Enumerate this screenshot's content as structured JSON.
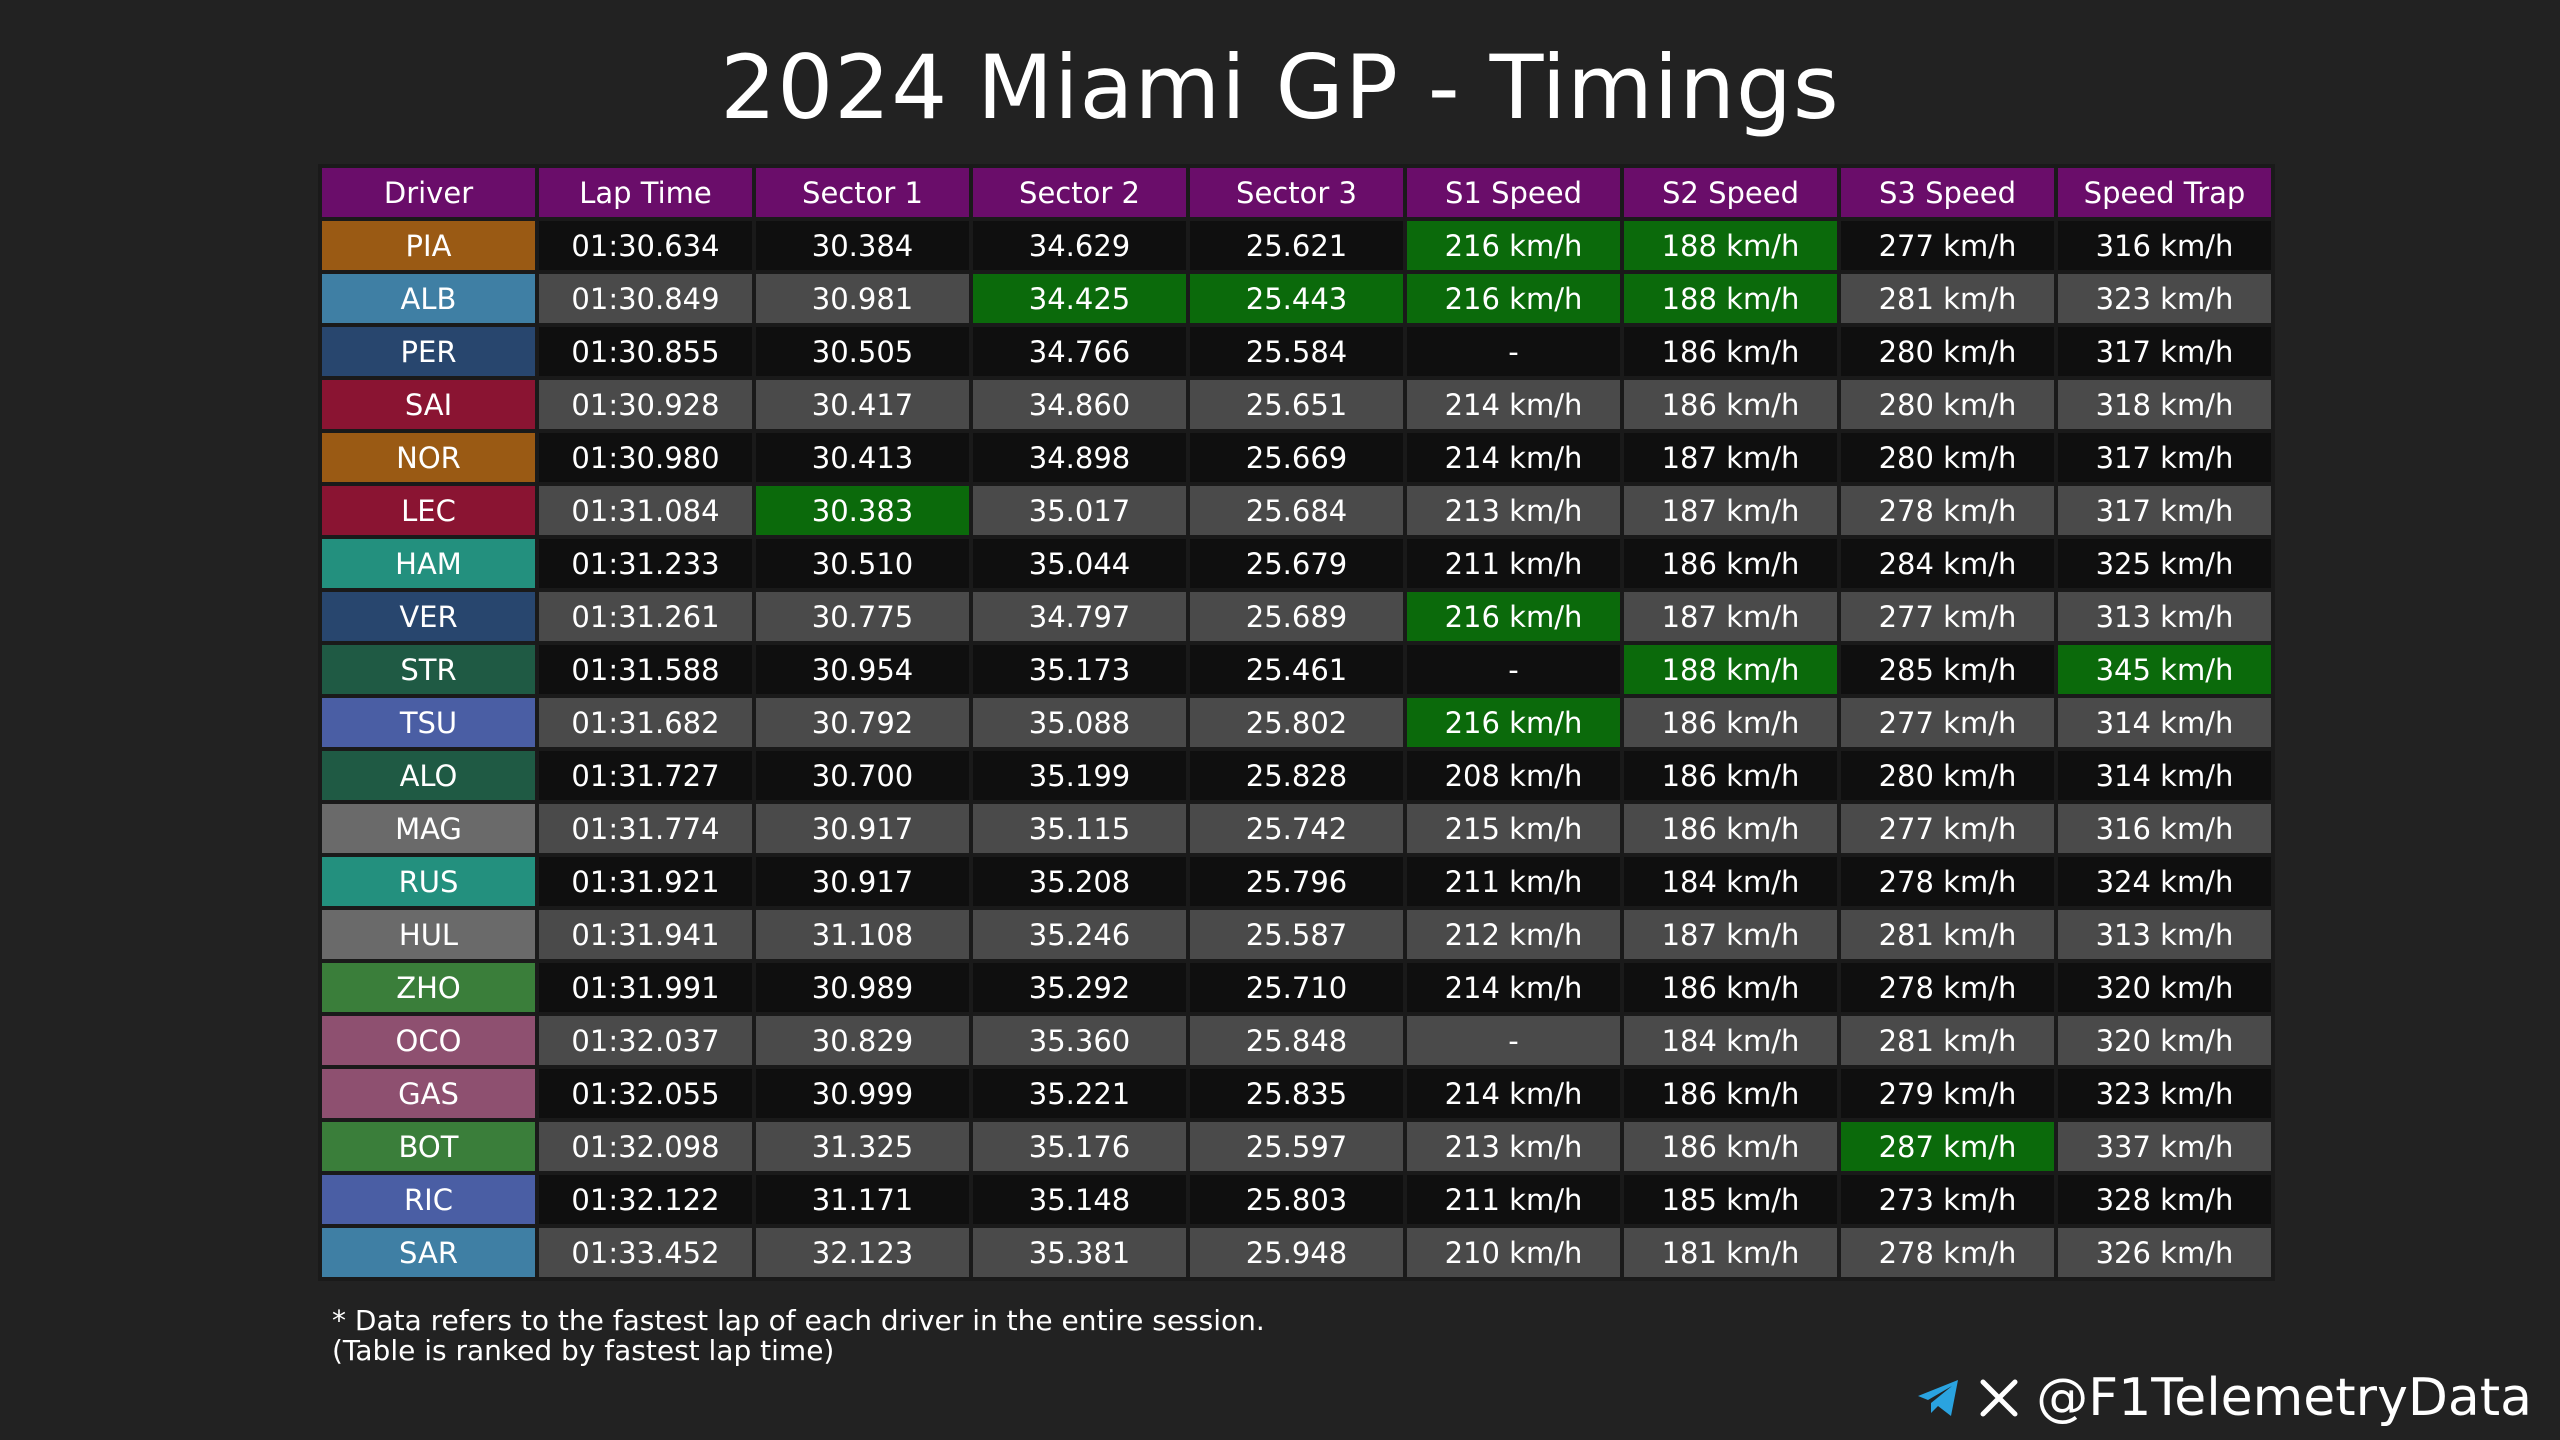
{
  "title": "2024 Miami GP - Timings",
  "watermark": "@F1TelemetryData",
  "colors": {
    "background": "#222222",
    "header": "#6a0d6a",
    "best": "#0b6a0b",
    "row_dark": "#0f0f0f",
    "row_light": "#4a4a4a"
  },
  "chart_data": {
    "type": "table",
    "columns": [
      "Driver",
      "Lap Time",
      "Sector 1",
      "Sector 2",
      "Sector 3",
      "S1 Speed",
      "S2 Speed",
      "S3 Speed",
      "Speed Trap"
    ],
    "rows": [
      {
        "driver": "PIA",
        "color": "#9a5a14",
        "cells": [
          "01:30.634",
          "30.384",
          "34.629",
          "25.621",
          "216 km/h",
          "188 km/h",
          "277 km/h",
          "316 km/h"
        ],
        "best": [
          4,
          5
        ]
      },
      {
        "driver": "ALB",
        "color": "#3f7fa4",
        "cells": [
          "01:30.849",
          "30.981",
          "34.425",
          "25.443",
          "216 km/h",
          "188 km/h",
          "281 km/h",
          "323 km/h"
        ],
        "best": [
          2,
          3,
          4,
          5
        ]
      },
      {
        "driver": "PER",
        "color": "#28466e",
        "cells": [
          "01:30.855",
          "30.505",
          "34.766",
          "25.584",
          "-",
          "186 km/h",
          "280 km/h",
          "317 km/h"
        ],
        "best": []
      },
      {
        "driver": "SAI",
        "color": "#8a1432",
        "cells": [
          "01:30.928",
          "30.417",
          "34.860",
          "25.651",
          "214 km/h",
          "186 km/h",
          "280 km/h",
          "318 km/h"
        ],
        "best": []
      },
      {
        "driver": "NOR",
        "color": "#9a5a14",
        "cells": [
          "01:30.980",
          "30.413",
          "34.898",
          "25.669",
          "214 km/h",
          "187 km/h",
          "280 km/h",
          "317 km/h"
        ],
        "best": []
      },
      {
        "driver": "LEC",
        "color": "#8a1432",
        "cells": [
          "01:31.084",
          "30.383",
          "35.017",
          "25.684",
          "213 km/h",
          "187 km/h",
          "278 km/h",
          "317 km/h"
        ],
        "best": [
          1
        ]
      },
      {
        "driver": "HAM",
        "color": "#23907e",
        "cells": [
          "01:31.233",
          "30.510",
          "35.044",
          "25.679",
          "211 km/h",
          "186 km/h",
          "284 km/h",
          "325 km/h"
        ],
        "best": []
      },
      {
        "driver": "VER",
        "color": "#28466e",
        "cells": [
          "01:31.261",
          "30.775",
          "34.797",
          "25.689",
          "216 km/h",
          "187 km/h",
          "277 km/h",
          "313 km/h"
        ],
        "best": [
          4
        ]
      },
      {
        "driver": "STR",
        "color": "#1f5a44",
        "cells": [
          "01:31.588",
          "30.954",
          "35.173",
          "25.461",
          "-",
          "188 km/h",
          "285 km/h",
          "345 km/h"
        ],
        "best": [
          5,
          7
        ]
      },
      {
        "driver": "TSU",
        "color": "#4a5ea4",
        "cells": [
          "01:31.682",
          "30.792",
          "35.088",
          "25.802",
          "216 km/h",
          "186 km/h",
          "277 km/h",
          "314 km/h"
        ],
        "best": [
          4
        ]
      },
      {
        "driver": "ALO",
        "color": "#1f5a44",
        "cells": [
          "01:31.727",
          "30.700",
          "35.199",
          "25.828",
          "208 km/h",
          "186 km/h",
          "280 km/h",
          "314 km/h"
        ],
        "best": []
      },
      {
        "driver": "MAG",
        "color": "#6a6a6a",
        "cells": [
          "01:31.774",
          "30.917",
          "35.115",
          "25.742",
          "215 km/h",
          "186 km/h",
          "277 km/h",
          "316 km/h"
        ],
        "best": []
      },
      {
        "driver": "RUS",
        "color": "#23907e",
        "cells": [
          "01:31.921",
          "30.917",
          "35.208",
          "25.796",
          "211 km/h",
          "184 km/h",
          "278 km/h",
          "324 km/h"
        ],
        "best": []
      },
      {
        "driver": "HUL",
        "color": "#6a6a6a",
        "cells": [
          "01:31.941",
          "31.108",
          "35.246",
          "25.587",
          "212 km/h",
          "187 km/h",
          "281 km/h",
          "313 km/h"
        ],
        "best": []
      },
      {
        "driver": "ZHO",
        "color": "#3a7e3a",
        "cells": [
          "01:31.991",
          "30.989",
          "35.292",
          "25.710",
          "214 km/h",
          "186 km/h",
          "278 km/h",
          "320 km/h"
        ],
        "best": []
      },
      {
        "driver": "OCO",
        "color": "#8e5070",
        "cells": [
          "01:32.037",
          "30.829",
          "35.360",
          "25.848",
          "-",
          "184 km/h",
          "281 km/h",
          "320 km/h"
        ],
        "best": []
      },
      {
        "driver": "GAS",
        "color": "#8e5070",
        "cells": [
          "01:32.055",
          "30.999",
          "35.221",
          "25.835",
          "214 km/h",
          "186 km/h",
          "279 km/h",
          "323 km/h"
        ],
        "best": []
      },
      {
        "driver": "BOT",
        "color": "#3a7e3a",
        "cells": [
          "01:32.098",
          "31.325",
          "35.176",
          "25.597",
          "213 km/h",
          "186 km/h",
          "287 km/h",
          "337 km/h"
        ],
        "best": [
          6
        ]
      },
      {
        "driver": "RIC",
        "color": "#4a5ea4",
        "cells": [
          "01:32.122",
          "31.171",
          "35.148",
          "25.803",
          "211 km/h",
          "185 km/h",
          "273 km/h",
          "328 km/h"
        ],
        "best": []
      },
      {
        "driver": "SAR",
        "color": "#3f7fa4",
        "cells": [
          "01:33.452",
          "32.123",
          "35.381",
          "25.948",
          "210 km/h",
          "181 km/h",
          "278 km/h",
          "326 km/h"
        ],
        "best": []
      }
    ]
  },
  "footnote": {
    "line1": "* Data refers to the fastest lap of each driver in the entire session.",
    "line2": "(Table is ranked by fastest lap time)"
  },
  "footer": {
    "handle": "@F1TelemetryData",
    "icons": [
      "telegram-icon",
      "x-icon"
    ]
  }
}
